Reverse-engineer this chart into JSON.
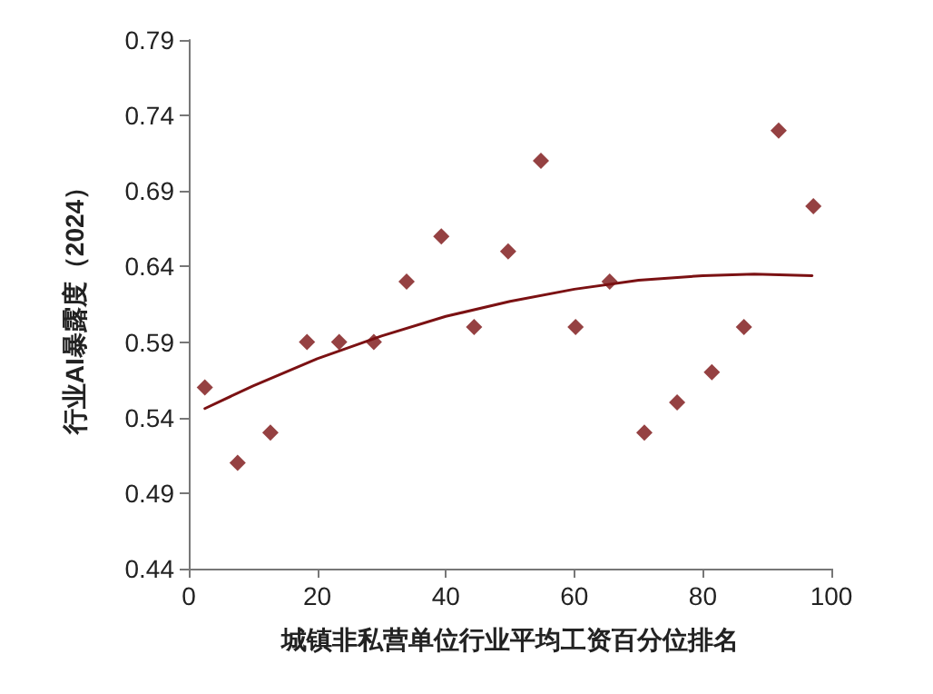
{
  "chart_data": {
    "type": "scatter",
    "xlabel": "城镇非私营单位行业平均工资百分位排名",
    "ylabel": "行业AI暴露度（2024）",
    "xlim": [
      0,
      100
    ],
    "xticks": [
      0,
      20,
      40,
      60,
      80,
      100
    ],
    "ylim": [
      0.44,
      0.79
    ],
    "yticks": [
      0.44,
      0.49,
      0.54,
      0.59,
      0.64,
      0.69,
      0.74,
      0.79
    ],
    "grid": false,
    "marker": "diamond",
    "series": [
      {
        "color": "#7b1113",
        "x": [
          2.5,
          7.6,
          12.7,
          18.4,
          23.4,
          28.8,
          33.9,
          39.3,
          44.4,
          49.7,
          54.8,
          60.2,
          65.5,
          70.9,
          76.0,
          81.4,
          86.4,
          91.8,
          97.2
        ],
        "values": [
          0.56,
          0.51,
          0.53,
          0.59,
          0.59,
          0.59,
          0.63,
          0.66,
          0.6,
          0.65,
          0.71,
          0.6,
          0.63,
          0.53,
          0.55,
          0.57,
          0.6,
          0.73,
          0.68
        ]
      },
      {
        "type": "line",
        "color": "#7b1113",
        "marker": "none",
        "line_style": "solid",
        "x": [
          2.5,
          10,
          20,
          30,
          40,
          50,
          60,
          70,
          80,
          88,
          97
        ],
        "values": [
          0.546,
          0.561,
          0.579,
          0.594,
          0.607,
          0.617,
          0.625,
          0.631,
          0.634,
          0.635,
          0.634
        ]
      }
    ]
  }
}
